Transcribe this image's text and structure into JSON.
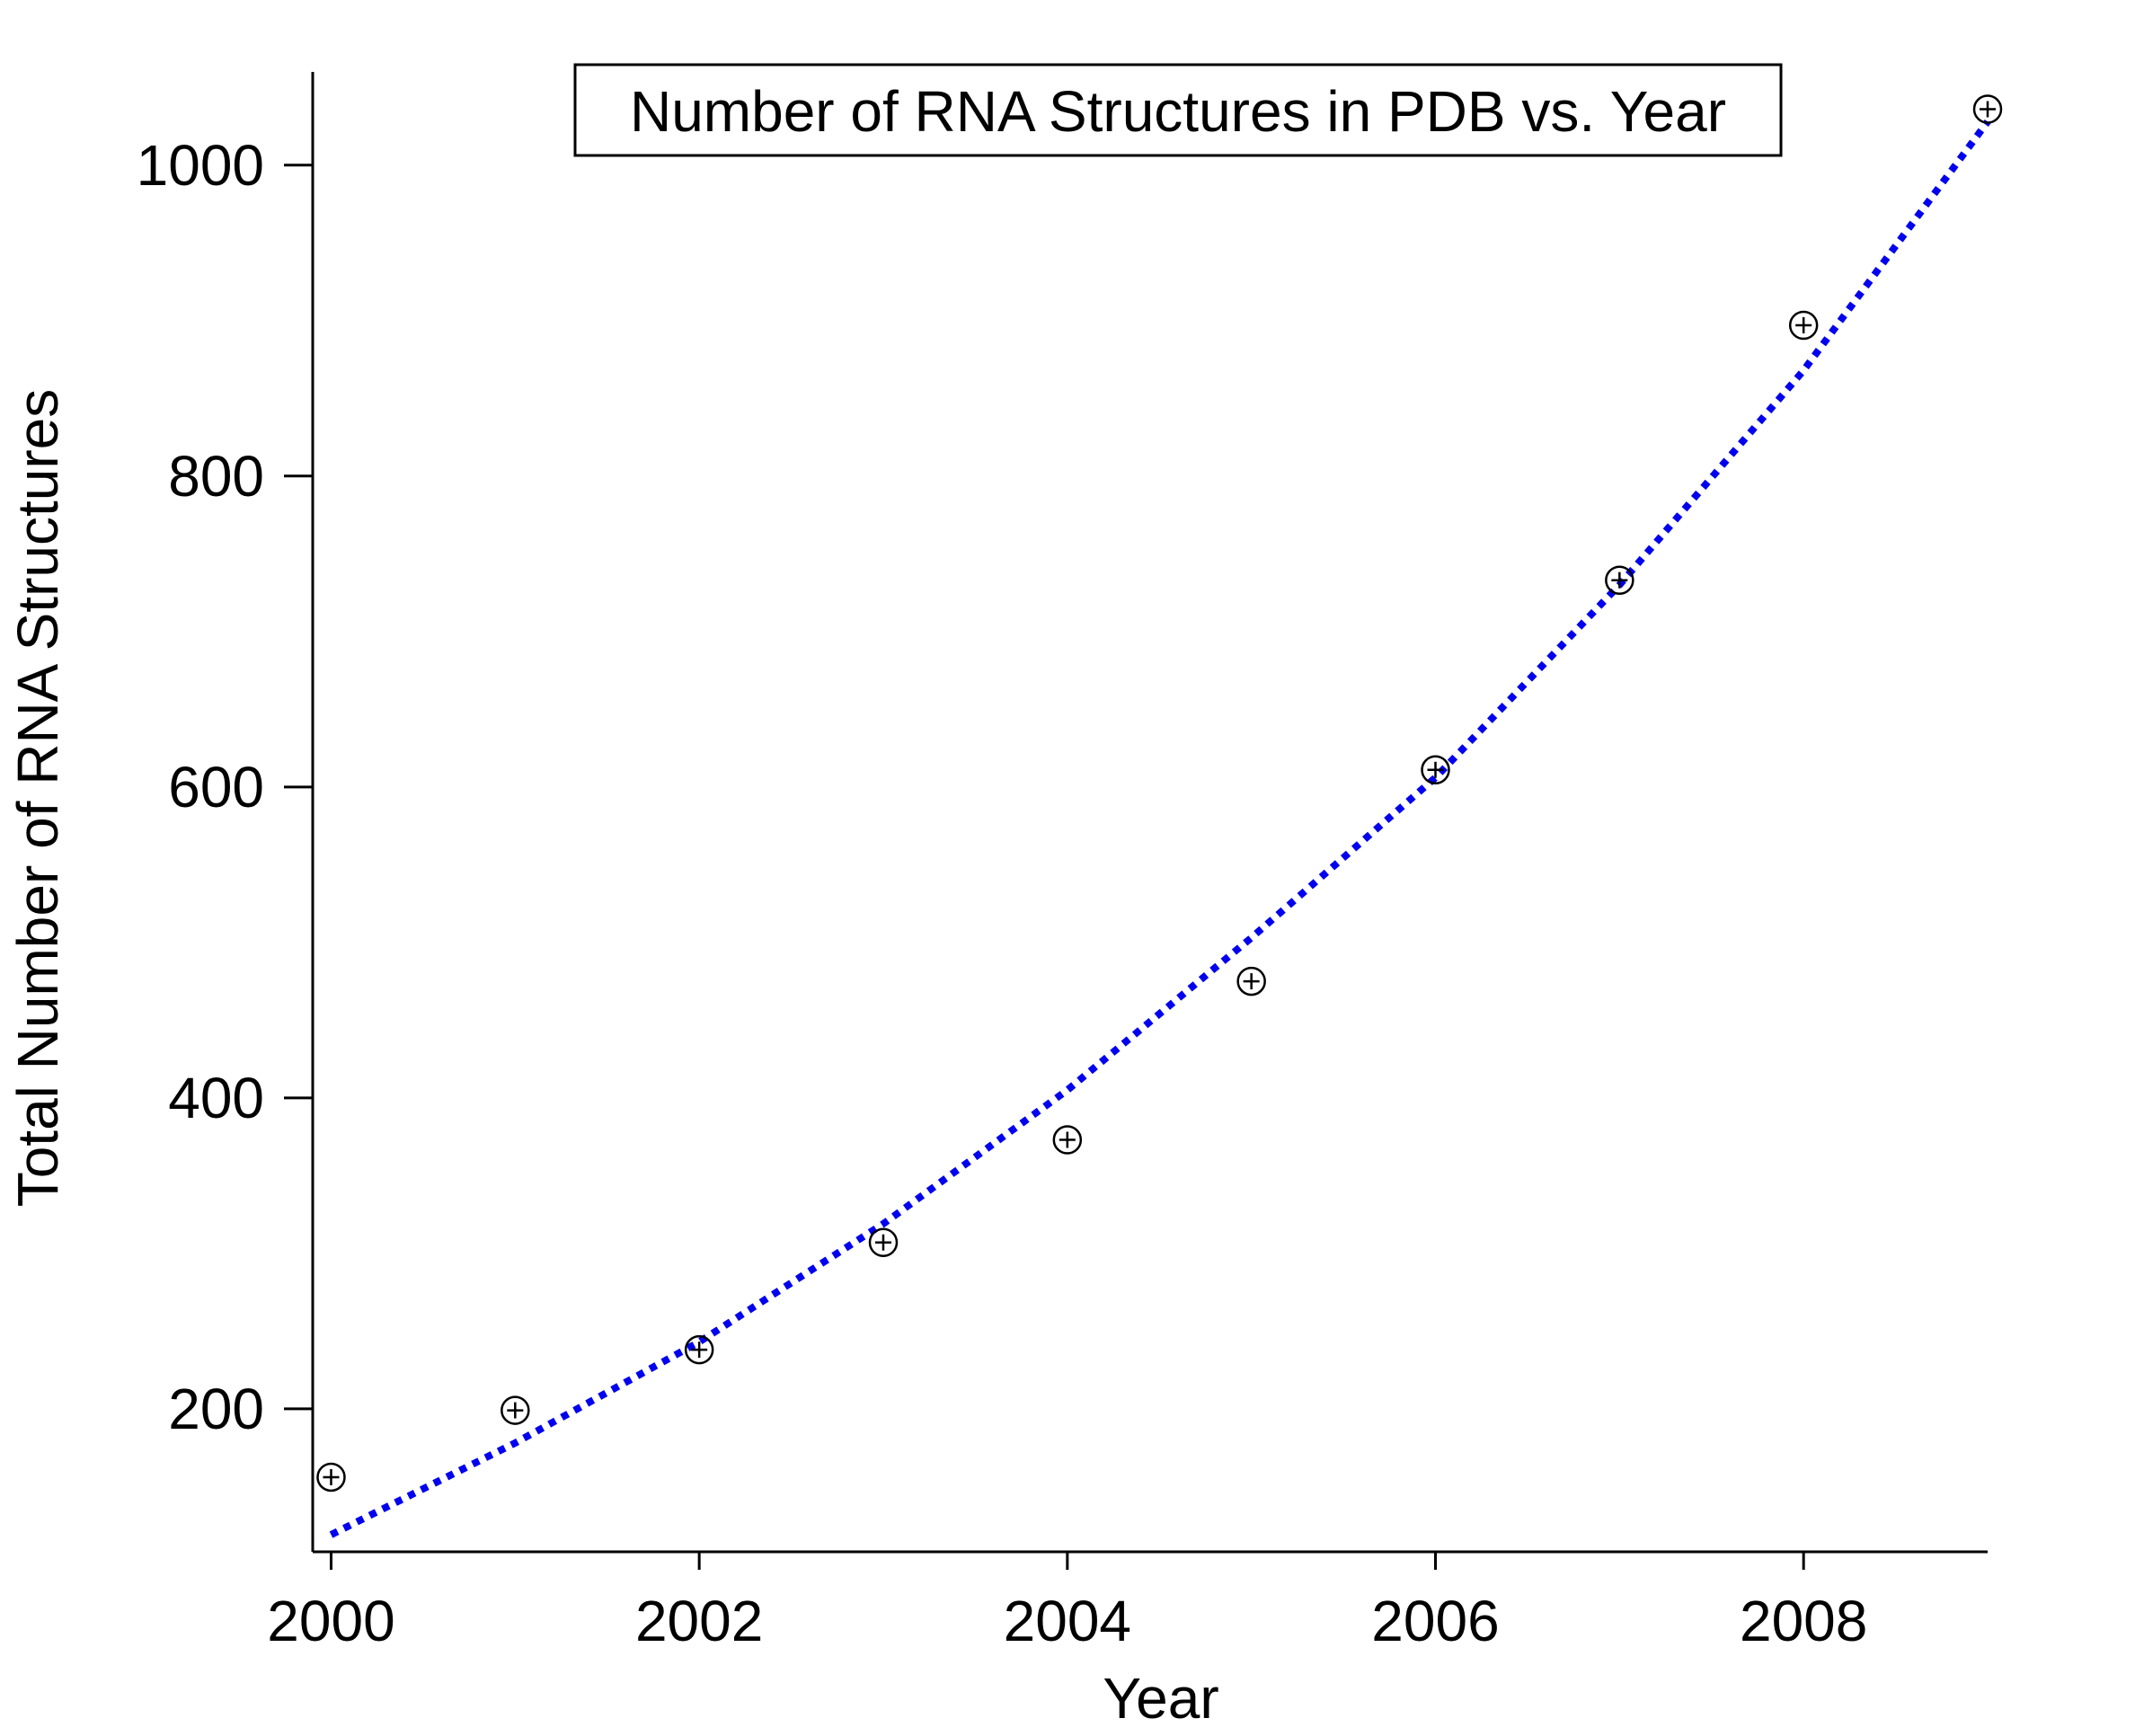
{
  "chart_data": {
    "type": "scatter",
    "title": "Number of RNA Structures in PDB vs. Year",
    "xlabel": "Year",
    "ylabel": "Total Number of RNA Structures",
    "xlim": [
      1999.9,
      2009.0
    ],
    "ylim": [
      108,
      1060
    ],
    "x_ticks": [
      2000,
      2002,
      2004,
      2006,
      2008
    ],
    "y_ticks": [
      200,
      400,
      600,
      800,
      1000
    ],
    "grid": false,
    "series": [
      {
        "kind": "points",
        "marker": "circle-plus",
        "color": "#000000",
        "x": [
          2000,
          2001,
          2002,
          2003,
          2004,
          2005,
          2006,
          2007,
          2008,
          2009
        ],
        "y": [
          156,
          199,
          238,
          307,
          373,
          475,
          611,
          733,
          897,
          1036
        ]
      },
      {
        "kind": "fit-line",
        "style": "dotted",
        "color": "#0000ee",
        "x": [
          2000,
          2001,
          2002,
          2003,
          2004,
          2005,
          2006,
          2007,
          2008,
          2009
        ],
        "y": [
          119,
          178,
          243,
          319,
          405,
          503,
          606,
          730,
          868,
          1028
        ]
      }
    ]
  }
}
